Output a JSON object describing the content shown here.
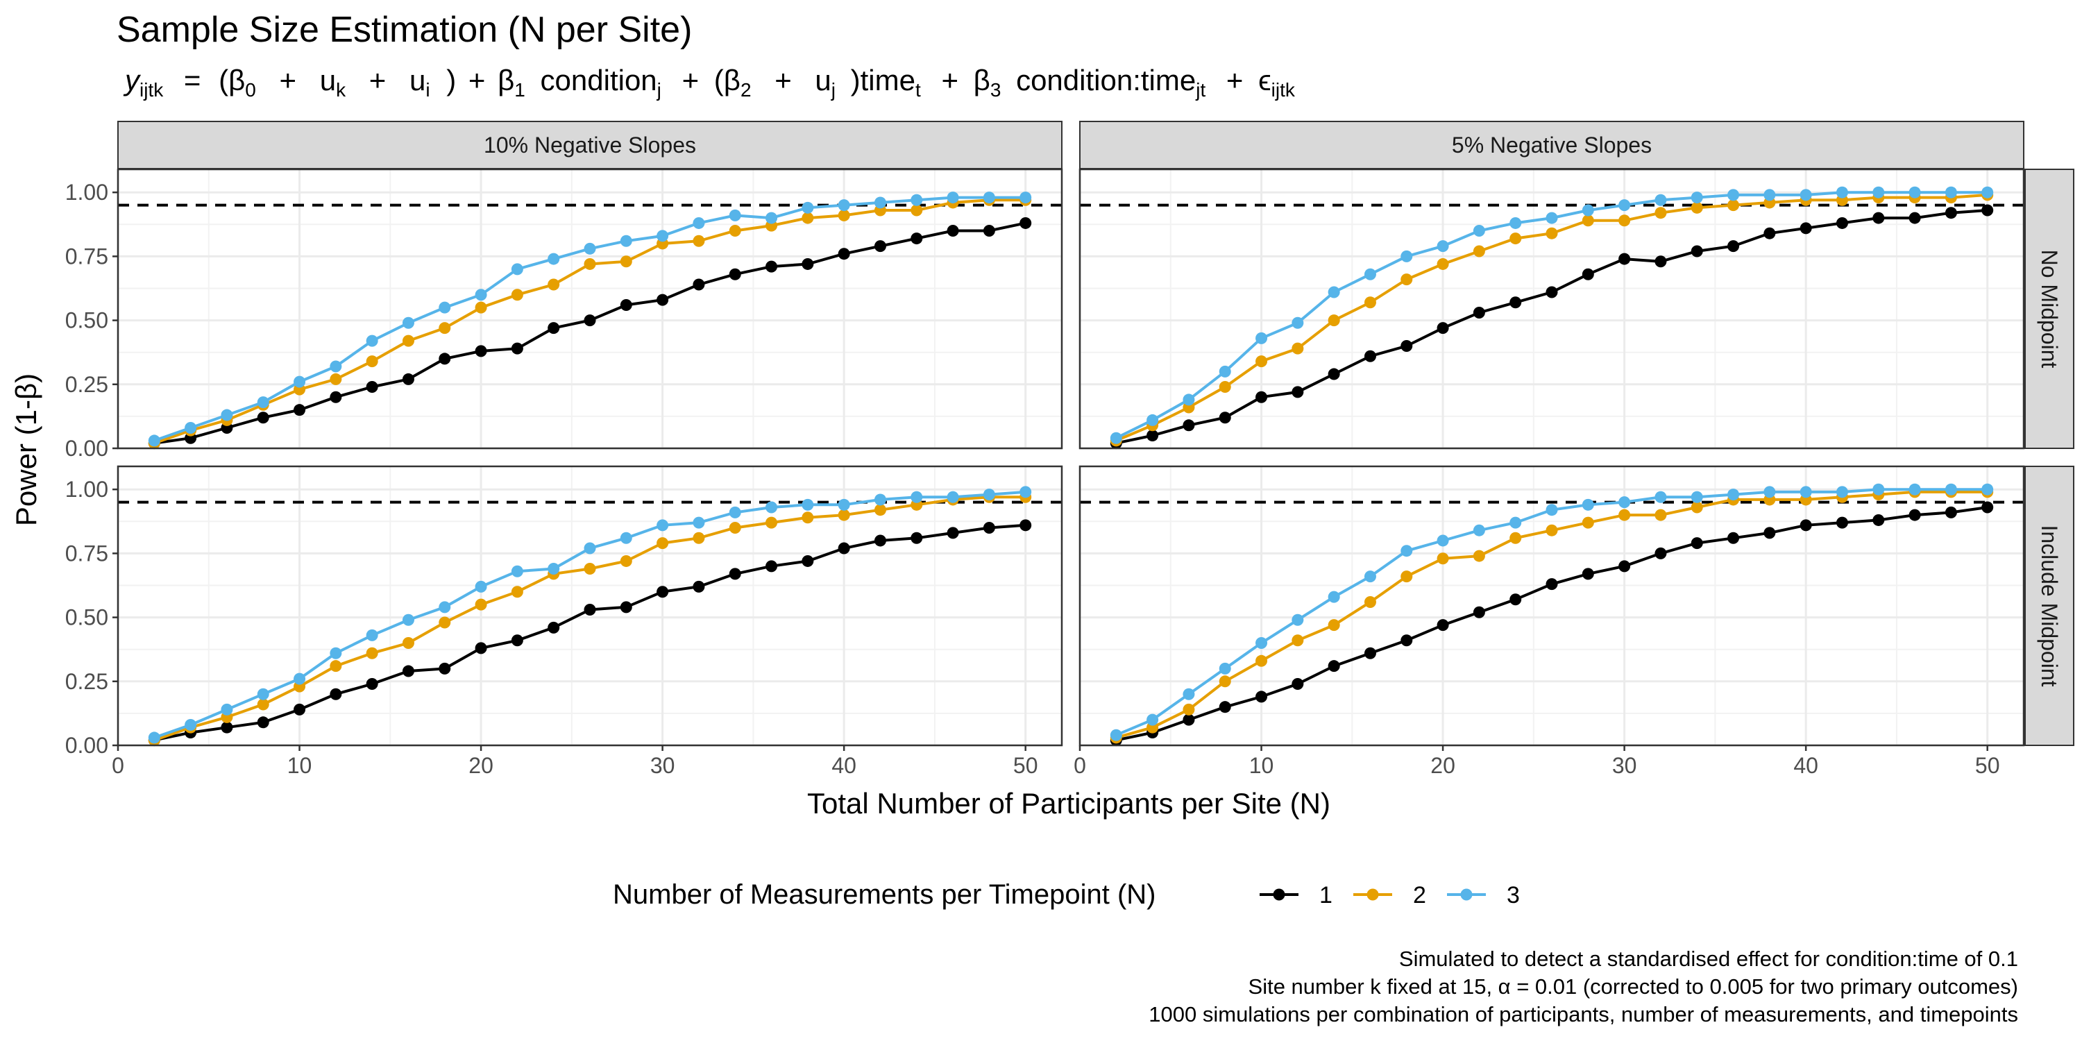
{
  "chart_data": {
    "type": "line",
    "title": "Sample Size Estimation (N per Site)",
    "subtitle": {
      "y": "y",
      "y_sub": "ijtk",
      "eq": "=",
      "open": "(",
      "b0": "β",
      "b0_sub": "0",
      "plus": "+",
      "uk": "u",
      "uk_sub": "k",
      "ui": "u",
      "ui_sub": "i",
      "close": ")",
      "b1": "β",
      "b1_sub": "1",
      "cond": "condition",
      "cond_sub": "j",
      "b2": "β",
      "b2_sub": "2",
      "uj": "u",
      "uj_sub": "j",
      "time": ")time",
      "time_sub": "t",
      "b3": "β",
      "b3_sub": "3",
      "interaction": "condition:time",
      "interaction_sub": "jt",
      "eps": "ϵ",
      "eps_sub": "ijtk"
    },
    "xlabel": "Total Number of Participants per Site (N)",
    "ylabel": "Power (1-β)",
    "xlim": [
      0,
      52
    ],
    "ylim": [
      0,
      1.09
    ],
    "x_ticks": [
      0,
      10,
      20,
      30,
      40,
      50
    ],
    "y_ticks": [
      "0.00",
      "0.25",
      "0.50",
      "0.75",
      "1.00"
    ],
    "reference_line": 0.95,
    "grid": true,
    "legend": {
      "title": "Number of Measurements per Timepoint (N)",
      "position": "bottom",
      "entries": [
        {
          "label": "1",
          "color": "#000000"
        },
        {
          "label": "2",
          "color": "#E69F00"
        },
        {
          "label": "3",
          "color": "#56B4E9"
        }
      ]
    },
    "x": [
      2,
      4,
      6,
      8,
      10,
      12,
      14,
      16,
      18,
      20,
      22,
      24,
      26,
      28,
      30,
      32,
      34,
      36,
      38,
      40,
      42,
      44,
      46,
      48,
      50
    ],
    "col_labels": [
      "10% Negative Slopes",
      "5% Negative Slopes"
    ],
    "row_labels": [
      "No Midpoint",
      "Include Midpoint"
    ],
    "panels": [
      {
        "col": "10% Negative Slopes",
        "row": "No Midpoint",
        "series": [
          {
            "name": "1",
            "values": [
              0.02,
              0.04,
              0.08,
              0.12,
              0.15,
              0.2,
              0.24,
              0.27,
              0.35,
              0.38,
              0.39,
              0.47,
              0.5,
              0.56,
              0.58,
              0.64,
              0.68,
              0.71,
              0.72,
              0.76,
              0.79,
              0.82,
              0.85,
              0.85,
              0.88
            ]
          },
          {
            "name": "2",
            "values": [
              0.02,
              0.07,
              0.11,
              0.17,
              0.23,
              0.27,
              0.34,
              0.42,
              0.47,
              0.55,
              0.6,
              0.64,
              0.72,
              0.73,
              0.8,
              0.81,
              0.85,
              0.87,
              0.9,
              0.91,
              0.93,
              0.93,
              0.96,
              0.97,
              0.97
            ]
          },
          {
            "name": "3",
            "values": [
              0.03,
              0.08,
              0.13,
              0.18,
              0.26,
              0.32,
              0.42,
              0.49,
              0.55,
              0.6,
              0.7,
              0.74,
              0.78,
              0.81,
              0.83,
              0.88,
              0.91,
              0.9,
              0.94,
              0.95,
              0.96,
              0.97,
              0.98,
              0.98,
              0.98
            ]
          }
        ]
      },
      {
        "col": "5% Negative Slopes",
        "row": "No Midpoint",
        "series": [
          {
            "name": "1",
            "values": [
              0.02,
              0.05,
              0.09,
              0.12,
              0.2,
              0.22,
              0.29,
              0.36,
              0.4,
              0.47,
              0.53,
              0.57,
              0.61,
              0.68,
              0.74,
              0.73,
              0.77,
              0.79,
              0.84,
              0.86,
              0.88,
              0.9,
              0.9,
              0.92,
              0.93
            ]
          },
          {
            "name": "2",
            "values": [
              0.03,
              0.09,
              0.16,
              0.24,
              0.34,
              0.39,
              0.5,
              0.57,
              0.66,
              0.72,
              0.77,
              0.82,
              0.84,
              0.89,
              0.89,
              0.92,
              0.94,
              0.95,
              0.96,
              0.97,
              0.97,
              0.98,
              0.98,
              0.98,
              0.99
            ]
          },
          {
            "name": "3",
            "values": [
              0.04,
              0.11,
              0.19,
              0.3,
              0.43,
              0.49,
              0.61,
              0.68,
              0.75,
              0.79,
              0.85,
              0.88,
              0.9,
              0.93,
              0.95,
              0.97,
              0.98,
              0.99,
              0.99,
              0.99,
              1.0,
              1.0,
              1.0,
              1.0,
              1.0
            ]
          }
        ]
      },
      {
        "col": "10% Negative Slopes",
        "row": "Include Midpoint",
        "series": [
          {
            "name": "1",
            "values": [
              0.02,
              0.05,
              0.07,
              0.09,
              0.14,
              0.2,
              0.24,
              0.29,
              0.3,
              0.38,
              0.41,
              0.46,
              0.53,
              0.54,
              0.6,
              0.62,
              0.67,
              0.7,
              0.72,
              0.77,
              0.8,
              0.81,
              0.83,
              0.85,
              0.86
            ]
          },
          {
            "name": "2",
            "values": [
              0.02,
              0.07,
              0.11,
              0.16,
              0.23,
              0.31,
              0.36,
              0.4,
              0.48,
              0.55,
              0.6,
              0.67,
              0.69,
              0.72,
              0.79,
              0.81,
              0.85,
              0.87,
              0.89,
              0.9,
              0.92,
              0.94,
              0.96,
              0.97,
              0.97
            ]
          },
          {
            "name": "3",
            "values": [
              0.03,
              0.08,
              0.14,
              0.2,
              0.26,
              0.36,
              0.43,
              0.49,
              0.54,
              0.62,
              0.68,
              0.69,
              0.77,
              0.81,
              0.86,
              0.87,
              0.91,
              0.93,
              0.94,
              0.94,
              0.96,
              0.97,
              0.97,
              0.98,
              0.99
            ]
          }
        ]
      },
      {
        "col": "5% Negative Slopes",
        "row": "Include Midpoint",
        "series": [
          {
            "name": "1",
            "values": [
              0.02,
              0.05,
              0.1,
              0.15,
              0.19,
              0.24,
              0.31,
              0.36,
              0.41,
              0.47,
              0.52,
              0.57,
              0.63,
              0.67,
              0.7,
              0.75,
              0.79,
              0.81,
              0.83,
              0.86,
              0.87,
              0.88,
              0.9,
              0.91,
              0.93
            ]
          },
          {
            "name": "2",
            "values": [
              0.03,
              0.07,
              0.14,
              0.25,
              0.33,
              0.41,
              0.47,
              0.56,
              0.66,
              0.73,
              0.74,
              0.81,
              0.84,
              0.87,
              0.9,
              0.9,
              0.93,
              0.96,
              0.96,
              0.96,
              0.97,
              0.98,
              0.99,
              0.99,
              0.99
            ]
          },
          {
            "name": "3",
            "values": [
              0.04,
              0.1,
              0.2,
              0.3,
              0.4,
              0.49,
              0.58,
              0.66,
              0.76,
              0.8,
              0.84,
              0.87,
              0.92,
              0.94,
              0.95,
              0.97,
              0.97,
              0.98,
              0.99,
              0.99,
              0.99,
              1.0,
              1.0,
              1.0,
              1.0
            ]
          }
        ]
      }
    ],
    "caption": [
      "Simulated to detect a standardised effect for condition:time of 0.1",
      "Site number k fixed at 15, α = 0.01 (corrected to 0.005 for two primary outcomes)",
      "1000 simulations per combination of participants, number of measurements, and timepoints"
    ]
  }
}
